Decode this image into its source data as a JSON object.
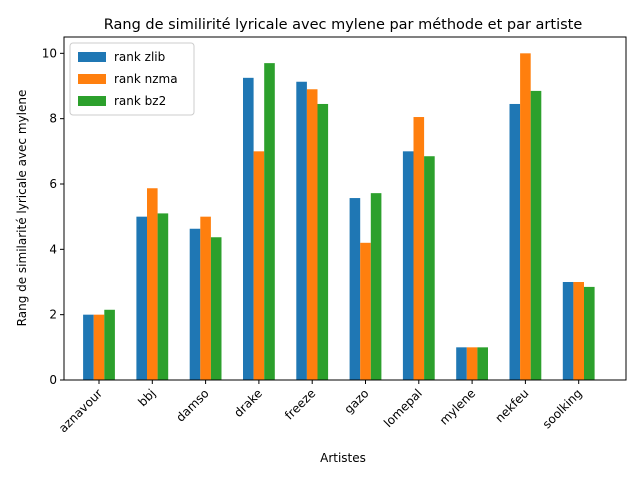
{
  "chart_data": {
    "type": "bar",
    "title": "Rang de similirité lyricale avec mylene par méthode et par artiste",
    "xlabel": "Artistes",
    "ylabel": "Rang de similarité lyricale avec mylene",
    "categories": [
      "aznavour",
      "bbj",
      "damso",
      "drake",
      "freeze",
      "gazo",
      "lomepal",
      "mylene",
      "nekfeu",
      "soolking"
    ],
    "series": [
      {
        "name": "rank zlib",
        "color": "#1f77b4",
        "values": [
          2.0,
          5.0,
          4.63,
          9.25,
          9.13,
          5.57,
          7.0,
          1.0,
          8.45,
          3.0
        ]
      },
      {
        "name": "rank nzma",
        "color": "#ff7f0e",
        "values": [
          2.0,
          5.87,
          5.0,
          7.0,
          8.9,
          4.2,
          8.05,
          1.0,
          10.0,
          3.0
        ]
      },
      {
        "name": "rank bz2",
        "color": "#2ca02c",
        "values": [
          2.15,
          5.1,
          4.37,
          9.7,
          8.45,
          5.72,
          6.85,
          1.0,
          8.85,
          2.85
        ]
      }
    ],
    "ylim": [
      0,
      10.5
    ],
    "yticks": [
      0,
      2,
      4,
      6,
      8,
      10
    ],
    "legend_position": "top-left",
    "grid": false
  }
}
